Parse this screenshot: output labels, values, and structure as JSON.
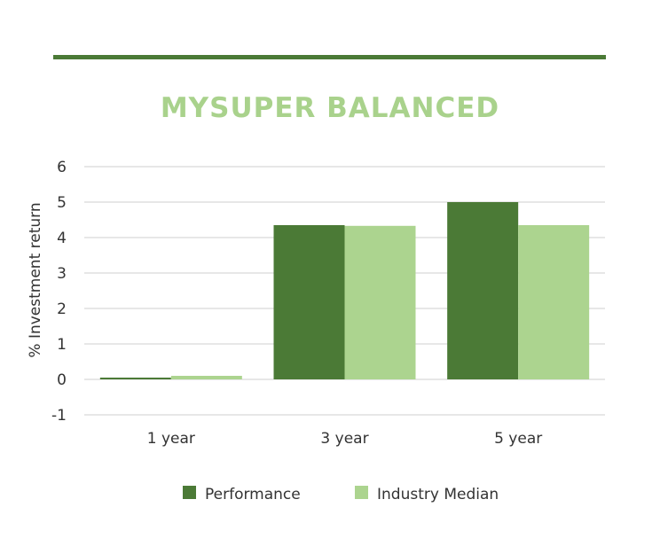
{
  "chart_data": {
    "type": "bar",
    "title": "MYSUPER BALANCED",
    "ylabel": "% Investment return",
    "xlabel": "",
    "categories": [
      "1 year",
      "3 year",
      "5 year"
    ],
    "series": [
      {
        "name": "Performance",
        "color": "#4b7a36",
        "values": [
          0.05,
          4.35,
          5.0
        ]
      },
      {
        "name": "Industry Median",
        "color": "#acd48f",
        "values": [
          0.1,
          4.33,
          4.35
        ]
      }
    ],
    "ylim": [
      -1,
      6
    ],
    "yticks": [
      "-1",
      "0",
      "1",
      "2",
      "3",
      "4",
      "5",
      "6"
    ],
    "grid": true,
    "legend_position": "bottom"
  }
}
